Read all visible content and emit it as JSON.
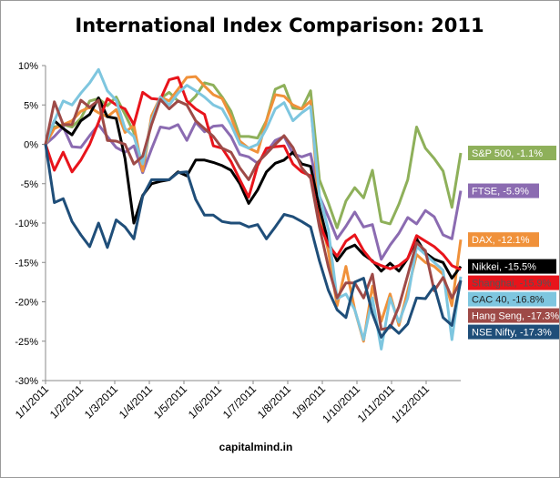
{
  "chart_data": {
    "type": "line",
    "title": "International Index Comparison: 2011",
    "credit": "capitalmind.in",
    "xlabel": "",
    "ylabel": "",
    "x_tick_labels": [
      "1/1/2011",
      "1/2/2011",
      "1/3/2011",
      "1/4/2011",
      "1/5/2011",
      "1/6/2011",
      "1/7/2011",
      "1/8/2011",
      "1/9/2011",
      "1/10/2011",
      "1/11/2011",
      "1/12/2011"
    ],
    "y_ticks": [
      10,
      5,
      0,
      -5,
      -10,
      -15,
      -20,
      -25,
      -30
    ],
    "y_tick_labels": [
      "10%",
      "5%",
      "0%",
      "-5%",
      "-10%",
      "-15%",
      "-20%",
      "-25%",
      "-30%"
    ],
    "ylim": [
      -30,
      10
    ],
    "x_unit": "week",
    "grid": false,
    "series": [
      {
        "name": "S&P 500",
        "label": "S&P 500, -1.1%",
        "color": "#8eb05a",
        "label_text_color": "#ffffff",
        "values": [
          0,
          2.2,
          2.5,
          2.2,
          3.3,
          5.5,
          5.8,
          4.9,
          6,
          3.8,
          1.5,
          -3.6,
          3.4,
          5.8,
          6.6,
          5.5,
          5,
          6.1,
          7.8,
          7.5,
          6,
          4.2,
          1,
          1,
          0.8,
          3,
          7,
          7.5,
          4.6,
          4.5,
          6.8,
          -4.5,
          -7.4,
          -10.6,
          -7.2,
          -5.5,
          -6.8,
          -3.3,
          -9.8,
          -10.1,
          -7.6,
          -4.5,
          2.2,
          -0.5,
          -1.8,
          -3.4,
          -8,
          -1.1
        ]
      },
      {
        "name": "FTSE",
        "label": "FTSE, -5.9%",
        "color": "#8b6bb1",
        "label_text_color": "#ffffff",
        "values": [
          0,
          1,
          2.2,
          -0.3,
          -0.4,
          1.1,
          2.5,
          1,
          -0.4,
          -1,
          -0.2,
          -3.6,
          -0.6,
          2.2,
          2,
          2.5,
          0.5,
          2.8,
          1.6,
          2.3,
          2.4,
          1,
          -1.3,
          -1.6,
          -2.4,
          -1,
          0.5,
          1,
          -1.2,
          -1.6,
          -1.2,
          -6.6,
          -9.2,
          -12,
          -10.4,
          -8.6,
          -10.5,
          -10.2,
          -14.6,
          -12.8,
          -11.3,
          -9.3,
          -10.1,
          -8.4,
          -9.2,
          -11.5,
          -12,
          -5.9
        ]
      },
      {
        "name": "DAX",
        "label": "DAX, -12.1%",
        "color": "#f0913a",
        "label_text_color": "#ffffff",
        "values": [
          0,
          2,
          2.5,
          3,
          4.2,
          4.7,
          4,
          3.5,
          4.4,
          1.5,
          2.4,
          -3.4,
          3.6,
          6,
          5.5,
          7,
          8.5,
          8.6,
          7.4,
          6.3,
          5.8,
          3.5,
          0.4,
          -0.5,
          -1,
          3,
          6.3,
          6.1,
          5,
          4.5,
          5.5,
          -8.7,
          -13.5,
          -20.5,
          -15.5,
          -21,
          -25,
          -18,
          -22.5,
          -19,
          -23,
          -18.6,
          -14,
          -15,
          -15.5,
          -16.5,
          -20.5,
          -12.1
        ]
      },
      {
        "name": "Nikkei",
        "label": "Nikkei, -15.5%",
        "color": "#000000",
        "label_text_color": "#ffffff",
        "values": [
          0,
          3,
          2,
          1.2,
          3,
          3.8,
          5.9,
          3.5,
          3.3,
          -1.8,
          -10,
          -6.5,
          -5,
          -4.7,
          -4.5,
          -3.5,
          -4,
          -2,
          -2,
          -2.3,
          -2.7,
          -3.3,
          -5,
          -7.5,
          -5.8,
          -3.5,
          -2.4,
          -2,
          -1,
          -2.5,
          -2.8,
          -8,
          -12.4,
          -14.8,
          -13.3,
          -12.8,
          -14,
          -14.8,
          -16.1,
          -15.1,
          -16.1,
          -14.5,
          -12,
          -13.8,
          -14.6,
          -15,
          -17,
          -15.5
        ]
      },
      {
        "name": "Shanghai",
        "label": "Shanghai, -15.9%",
        "color": "#e8141b",
        "label_text_color": "#555555",
        "values": [
          0,
          -3.3,
          -1,
          -3.5,
          -2,
          0,
          2.8,
          5.8,
          5,
          4.5,
          2.5,
          6.6,
          5.8,
          5.7,
          8.2,
          8.5,
          5.5,
          4.5,
          3.8,
          -0.2,
          -0.5,
          -2.2,
          -4.5,
          -6.7,
          -2.7,
          -0.5,
          -0.3,
          -0.2,
          -2.5,
          -3.5,
          -4,
          -10,
          -12.8,
          -14.2,
          -12.3,
          -11.5,
          -13.5,
          -14.9,
          -15.4,
          -15.8,
          -15.4,
          -14.5,
          -11.6,
          -12.3,
          -13,
          -14,
          -15.4,
          -15.9
        ]
      },
      {
        "name": "CAC 40",
        "label": "CAC 40, -16.8%",
        "color": "#7ec6df",
        "label_text_color": "#222222",
        "values": [
          0,
          3,
          5.5,
          5,
          6.5,
          7.8,
          9.5,
          6.8,
          5.6,
          2,
          1,
          -2.5,
          3,
          6,
          5,
          6.5,
          7.5,
          6.8,
          6,
          5,
          4.5,
          2.5,
          0,
          -0.5,
          0,
          2,
          4.5,
          5.3,
          3,
          4,
          4.8,
          -6.5,
          -10.8,
          -19.6,
          -19,
          -21,
          -24.8,
          -19.5,
          -26,
          -19.5,
          -22.6,
          -19.5,
          -13,
          -14,
          -15,
          -16,
          -24.8,
          -16.8
        ]
      },
      {
        "name": "Hang Seng",
        "label": "Hang Seng, -17.3%",
        "color": "#9e4a47",
        "label_text_color": "#ffffff",
        "values": [
          0,
          5.4,
          2.5,
          2.5,
          5.6,
          4.7,
          5.6,
          0.5,
          0.4,
          0,
          -2.5,
          -1.5,
          2.5,
          5.7,
          4.5,
          5.5,
          5,
          3,
          2,
          1,
          -0.5,
          -1,
          -3,
          -4.5,
          -2.3,
          -1.2,
          0,
          1.1,
          -0.4,
          -3,
          -4.3,
          -10.5,
          -15.5,
          -19.5,
          -17.6,
          -17.6,
          -19.5,
          -16.5,
          -23.5,
          -23.3,
          -20.6,
          -16.6,
          -12.5,
          -13.5,
          -18.6,
          -16.9,
          -19.5,
          -17.3
        ]
      },
      {
        "name": "NSE Nifty",
        "label": "NSE Nifty, -17.3%",
        "color": "#1f4e79",
        "label_text_color": "#ffffff",
        "values": [
          0,
          -7.4,
          -6.9,
          -9.8,
          -11.5,
          -13,
          -10,
          -13.1,
          -9.6,
          -10.5,
          -12,
          -6.6,
          -4.5,
          -4.5,
          -4.5,
          -3.6,
          -3.5,
          -7,
          -9,
          -9,
          -9.8,
          -10,
          -10,
          -10.5,
          -10.2,
          -12,
          -10.5,
          -8.9,
          -9.2,
          -9.8,
          -10.5,
          -14.8,
          -18.5,
          -21,
          -22,
          -17.5,
          -17,
          -21.5,
          -24.5,
          -23,
          -24,
          -22.8,
          -19.5,
          -19.6,
          -18,
          -22,
          -23,
          -17.3
        ]
      }
    ]
  }
}
